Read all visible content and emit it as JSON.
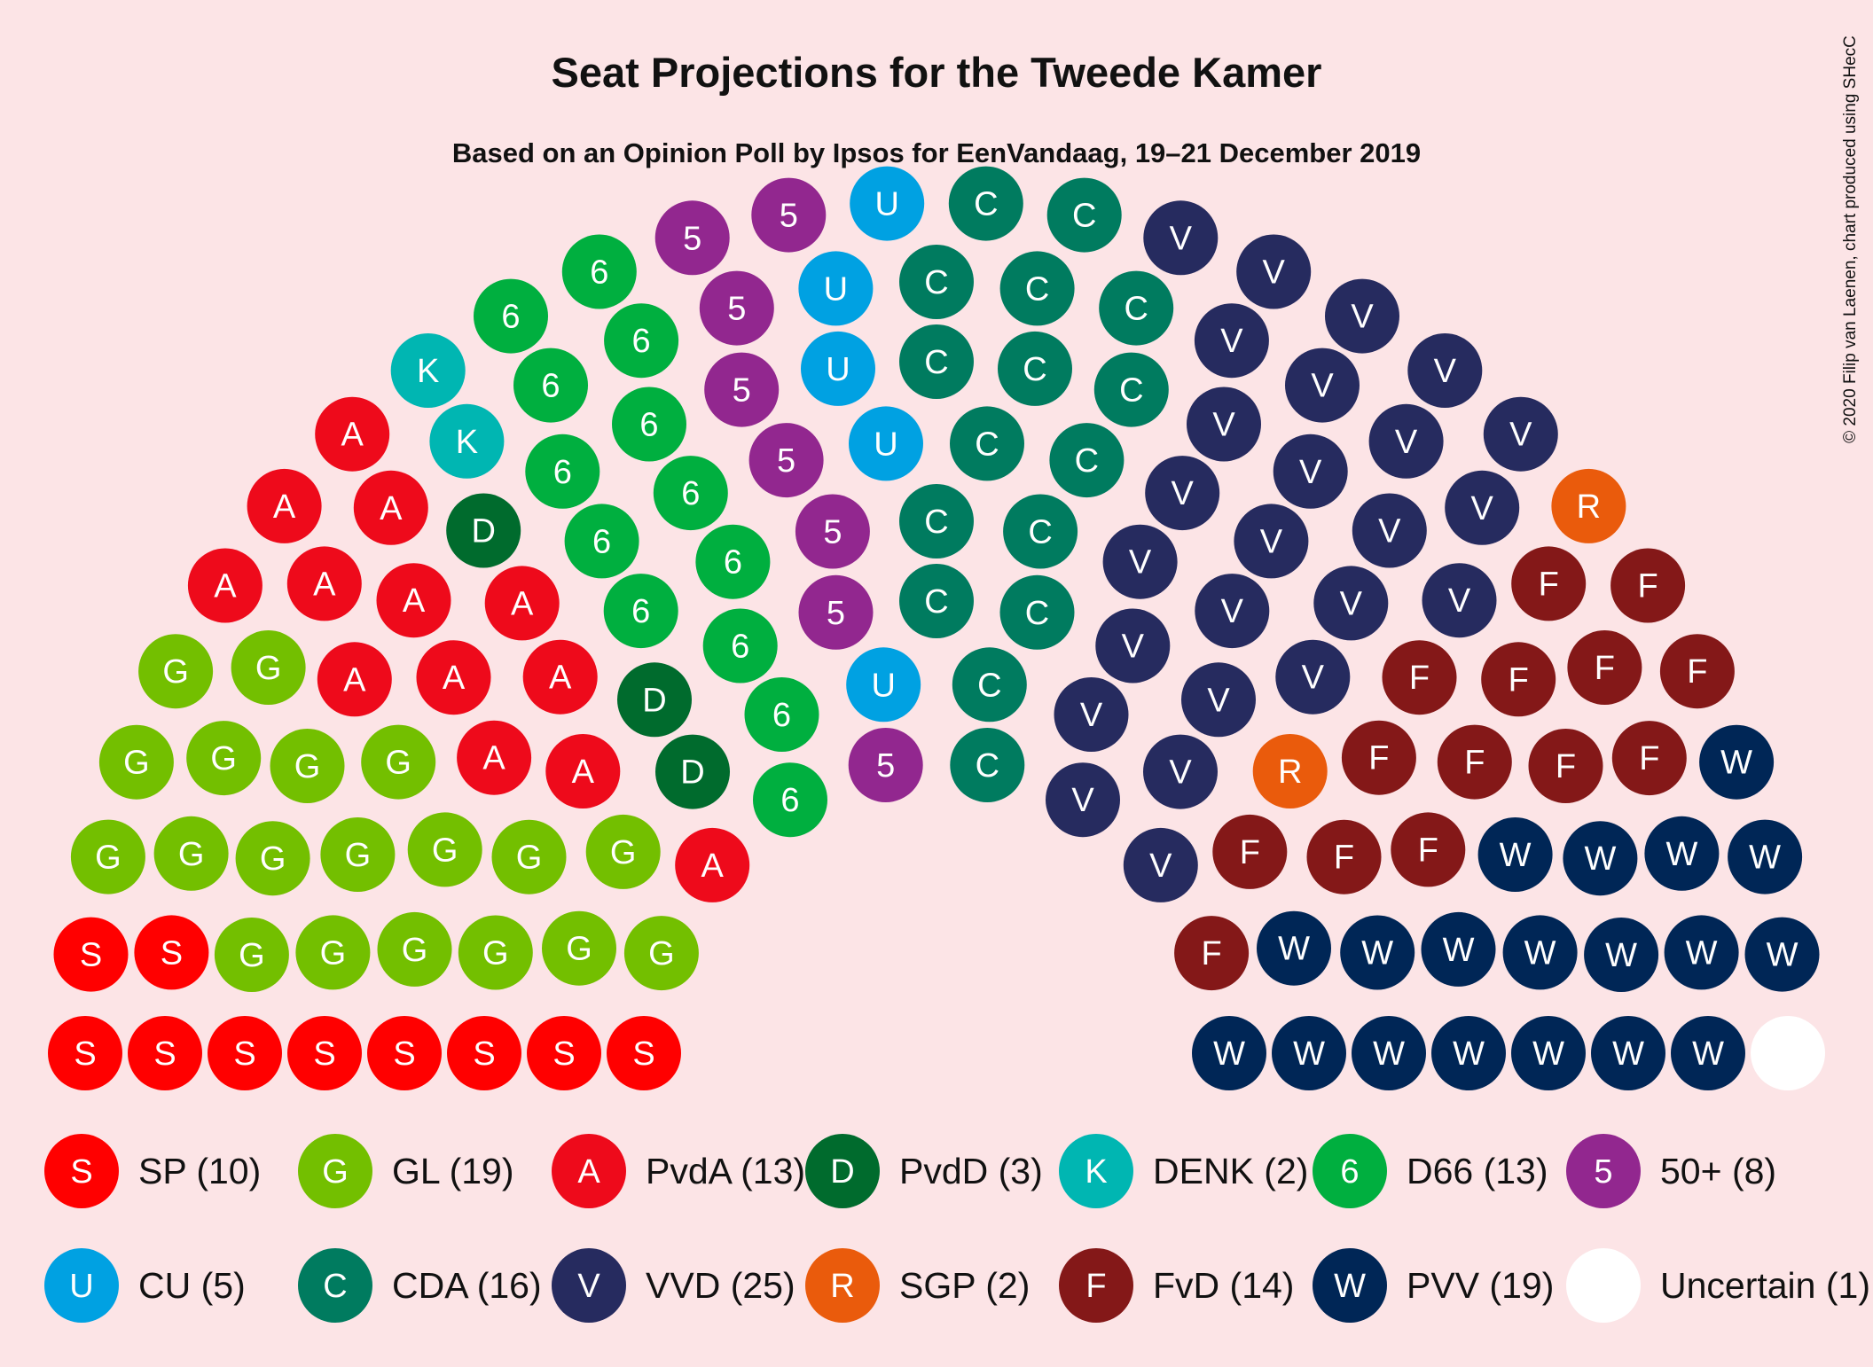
{
  "chart_data": {
    "type": "parliament",
    "title": "Seat Projections for the Tweede Kamer",
    "subtitle": "Based on an Opinion Poll by Ipsos for EenVandaag, 19–21 December 2019",
    "credit": "© 2020 Filip van Laenen, chart produced using SHecC",
    "total_seats": 150,
    "parties": [
      {
        "name": "SP",
        "letter": "S",
        "seats": 10,
        "color": "#ff0000",
        "legend_label": "SP (10)"
      },
      {
        "name": "GL",
        "letter": "G",
        "seats": 19,
        "color": "#73bf00",
        "legend_label": "GL (19)"
      },
      {
        "name": "PvdA",
        "letter": "A",
        "seats": 13,
        "color": "#ee0a1b",
        "legend_label": "PvdA (13)"
      },
      {
        "name": "PvdD",
        "letter": "D",
        "seats": 3,
        "color": "#006b2d",
        "legend_label": "PvdD (3)"
      },
      {
        "name": "DENK",
        "letter": "K",
        "seats": 2,
        "color": "#00b6b2",
        "legend_label": "DENK (2)"
      },
      {
        "name": "D66",
        "letter": "6",
        "seats": 13,
        "color": "#00af3f",
        "legend_label": "D66 (13)"
      },
      {
        "name": "50+",
        "letter": "5",
        "seats": 8,
        "color": "#92278f",
        "legend_label": "50+ (8)"
      },
      {
        "name": "CU",
        "letter": "U",
        "seats": 5,
        "color": "#00a1e2",
        "legend_label": "CU (5)"
      },
      {
        "name": "CDA",
        "letter": "C",
        "seats": 16,
        "color": "#007b5f",
        "legend_label": "CDA (16)"
      },
      {
        "name": "VVD",
        "letter": "V",
        "seats": 25,
        "color": "#262b5f",
        "legend_label": "VVD (25)"
      },
      {
        "name": "SGP",
        "letter": "R",
        "seats": 2,
        "color": "#ea5b0c",
        "legend_label": "SGP (2)"
      },
      {
        "name": "FvD",
        "letter": "F",
        "seats": 14,
        "color": "#841818",
        "legend_label": "FvD (14)"
      },
      {
        "name": "PVV",
        "letter": "W",
        "seats": 19,
        "color": "#002656",
        "legend_label": "PVV (19)"
      },
      {
        "name": "Uncertain",
        "letter": "",
        "seats": 1,
        "color": "#ffffff",
        "legend_label": "Uncertain (1)"
      }
    ]
  }
}
